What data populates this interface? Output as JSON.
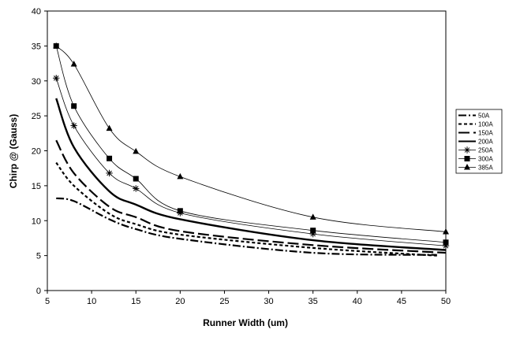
{
  "chart_data": {
    "type": "line",
    "title": "",
    "xlabel": "Runner Width (um)",
    "ylabel": "Chirp @ (Gauss)",
    "xlim": [
      5,
      50
    ],
    "ylim": [
      0,
      40
    ],
    "xticks": [
      5,
      10,
      15,
      20,
      25,
      30,
      35,
      40,
      45,
      50
    ],
    "yticks": [
      0,
      5,
      10,
      15,
      20,
      25,
      30,
      35,
      40
    ],
    "grid": false,
    "legend_position": "right",
    "series": [
      {
        "name": "50A",
        "style": "dash-dot",
        "marker": "none",
        "x": [
          6,
          8,
          12,
          15,
          20,
          35,
          49
        ],
        "y": [
          13.2,
          12.8,
          10.2,
          8.8,
          7.4,
          5.4,
          5.1
        ]
      },
      {
        "name": "100A",
        "style": "short-dash",
        "marker": "none",
        "x": [
          6,
          8,
          12,
          15,
          20,
          35,
          49
        ],
        "y": [
          18.3,
          15.0,
          11.0,
          9.5,
          8.0,
          6.1,
          5.0
        ]
      },
      {
        "name": "150A",
        "style": "long-dash",
        "marker": "none",
        "x": [
          6,
          8,
          12,
          15,
          20,
          35,
          50
        ],
        "y": [
          21.5,
          16.8,
          12.0,
          10.5,
          8.5,
          6.5,
          5.4
        ]
      },
      {
        "name": "200A",
        "style": "solid-thick",
        "marker": "none",
        "x": [
          6,
          8,
          12,
          15,
          20,
          35,
          50
        ],
        "y": [
          27.5,
          20.5,
          14.2,
          12.3,
          10.2,
          7.2,
          5.8
        ]
      },
      {
        "name": "250A",
        "style": "solid",
        "marker": "star",
        "x": [
          6,
          8,
          12,
          15,
          20,
          35,
          50
        ],
        "y": [
          30.4,
          23.6,
          16.8,
          14.6,
          11.1,
          8.1,
          6.4
        ]
      },
      {
        "name": "300A",
        "style": "solid",
        "marker": "square",
        "x": [
          6,
          8,
          12,
          15,
          20,
          35,
          50
        ],
        "y": [
          35.0,
          26.4,
          18.9,
          16.0,
          11.4,
          8.6,
          6.9
        ]
      },
      {
        "name": "385A",
        "style": "solid",
        "marker": "triangle",
        "x": [
          6,
          8,
          12,
          15,
          20,
          35,
          50
        ],
        "y": [
          35.0,
          32.4,
          23.2,
          19.9,
          16.3,
          10.5,
          8.4
        ]
      }
    ]
  }
}
